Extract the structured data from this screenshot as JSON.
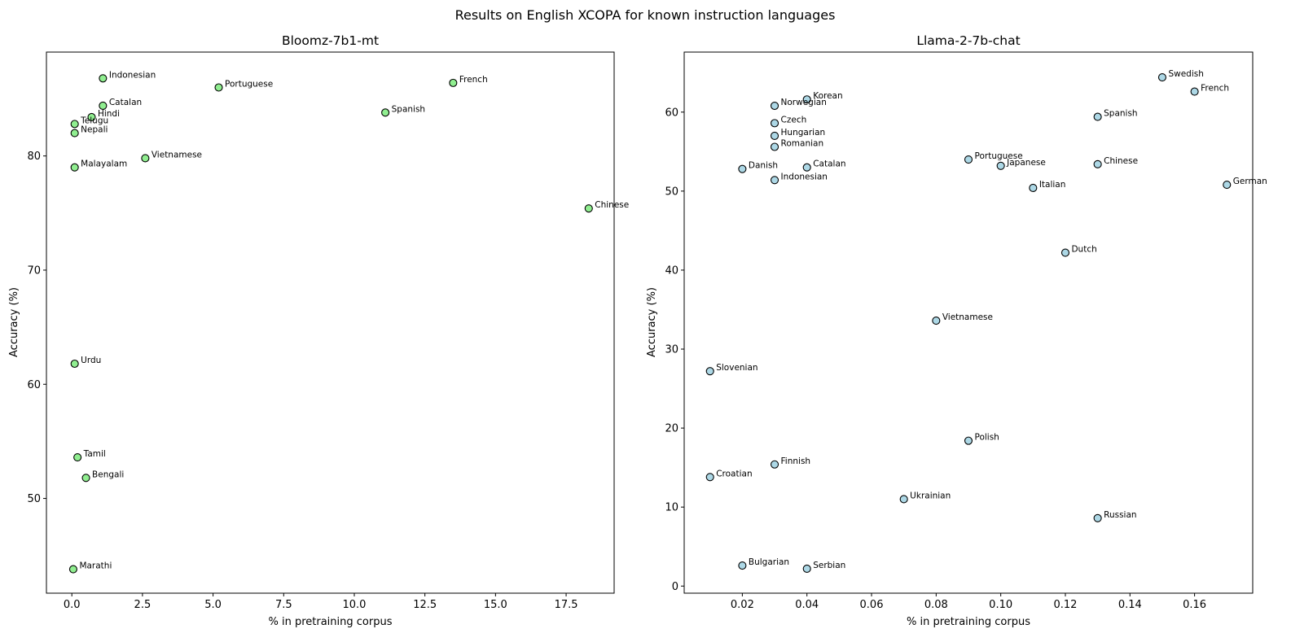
{
  "figure": {
    "suptitle": "Results on English XCOPA for known instruction languages"
  },
  "chart_data": [
    {
      "type": "scatter",
      "title": "Bloomz-7b1-mt",
      "xlabel": "% in pretraining corpus",
      "ylabel": "Accuracy (%)",
      "xlim": [
        -0.9,
        19.2
      ],
      "ylim": [
        41.7,
        89.1
      ],
      "xticks": [
        0.0,
        2.5,
        5.0,
        7.5,
        10.0,
        12.5,
        15.0,
        17.5
      ],
      "xtick_labels": [
        "0.0",
        "2.5",
        "5.0",
        "7.5",
        "10.0",
        "12.5",
        "15.0",
        "17.5"
      ],
      "yticks": [
        50,
        60,
        70,
        80
      ],
      "ytick_labels": [
        "50",
        "60",
        "70",
        "80"
      ],
      "marker_color": "#90ee90",
      "edge_color": "#000000",
      "grid": false,
      "points": [
        {
          "label": "Indonesian",
          "x": 1.1,
          "y": 86.8
        },
        {
          "label": "Portuguese",
          "x": 5.2,
          "y": 86.0
        },
        {
          "label": "French",
          "x": 13.5,
          "y": 86.4
        },
        {
          "label": "Catalan",
          "x": 1.1,
          "y": 84.4
        },
        {
          "label": "Hindi",
          "x": 0.7,
          "y": 83.4
        },
        {
          "label": "Spanish",
          "x": 11.1,
          "y": 83.8
        },
        {
          "label": "Telugu",
          "x": 0.1,
          "y": 82.8
        },
        {
          "label": "Nepali",
          "x": 0.1,
          "y": 82.0
        },
        {
          "label": "Vietnamese",
          "x": 2.6,
          "y": 79.8
        },
        {
          "label": "Malayalam",
          "x": 0.1,
          "y": 79.0
        },
        {
          "label": "Chinese",
          "x": 18.3,
          "y": 75.4
        },
        {
          "label": "Urdu",
          "x": 0.1,
          "y": 61.8
        },
        {
          "label": "Tamil",
          "x": 0.2,
          "y": 53.6
        },
        {
          "label": "Bengali",
          "x": 0.5,
          "y": 51.8
        },
        {
          "label": "Marathi",
          "x": 0.05,
          "y": 43.8
        }
      ]
    },
    {
      "type": "scatter",
      "title": "Llama-2-7b-chat",
      "xlabel": "% in pretraining corpus",
      "ylabel": "Accuracy (%)",
      "xlim": [
        0.002,
        0.178
      ],
      "ylim": [
        -0.9,
        67.6
      ],
      "xticks": [
        0.02,
        0.04,
        0.06,
        0.08,
        0.1,
        0.12,
        0.14,
        0.16
      ],
      "xtick_labels": [
        "0.02",
        "0.04",
        "0.06",
        "0.08",
        "0.10",
        "0.12",
        "0.14",
        "0.16"
      ],
      "yticks": [
        0,
        10,
        20,
        30,
        40,
        50,
        60
      ],
      "ytick_labels": [
        "0",
        "10",
        "20",
        "30",
        "40",
        "50",
        "60"
      ],
      "marker_color": "#add8e6",
      "edge_color": "#000000",
      "grid": false,
      "points": [
        {
          "label": "Swedish",
          "x": 0.15,
          "y": 64.4
        },
        {
          "label": "French",
          "x": 0.16,
          "y": 62.6
        },
        {
          "label": "Korean",
          "x": 0.04,
          "y": 61.6
        },
        {
          "label": "Norwegian",
          "x": 0.03,
          "y": 60.8
        },
        {
          "label": "Spanish",
          "x": 0.13,
          "y": 59.4
        },
        {
          "label": "Czech",
          "x": 0.03,
          "y": 58.6
        },
        {
          "label": "Hungarian",
          "x": 0.03,
          "y": 57.0
        },
        {
          "label": "Romanian",
          "x": 0.03,
          "y": 55.6
        },
        {
          "label": "Portuguese",
          "x": 0.09,
          "y": 54.0
        },
        {
          "label": "Japanese",
          "x": 0.1,
          "y": 53.2
        },
        {
          "label": "Chinese",
          "x": 0.13,
          "y": 53.4
        },
        {
          "label": "Danish",
          "x": 0.02,
          "y": 52.8
        },
        {
          "label": "Catalan",
          "x": 0.04,
          "y": 53.0
        },
        {
          "label": "Indonesian",
          "x": 0.03,
          "y": 51.4
        },
        {
          "label": "German",
          "x": 0.17,
          "y": 50.8
        },
        {
          "label": "Italian",
          "x": 0.11,
          "y": 50.4
        },
        {
          "label": "Dutch",
          "x": 0.12,
          "y": 42.2
        },
        {
          "label": "Vietnamese",
          "x": 0.08,
          "y": 33.6
        },
        {
          "label": "Slovenian",
          "x": 0.01,
          "y": 27.2
        },
        {
          "label": "Polish",
          "x": 0.09,
          "y": 18.4
        },
        {
          "label": "Finnish",
          "x": 0.03,
          "y": 15.4
        },
        {
          "label": "Croatian",
          "x": 0.01,
          "y": 13.8
        },
        {
          "label": "Ukrainian",
          "x": 0.07,
          "y": 11.0
        },
        {
          "label": "Russian",
          "x": 0.13,
          "y": 8.6
        },
        {
          "label": "Bulgarian",
          "x": 0.02,
          "y": 2.6
        },
        {
          "label": "Serbian",
          "x": 0.04,
          "y": 2.2
        }
      ]
    }
  ]
}
